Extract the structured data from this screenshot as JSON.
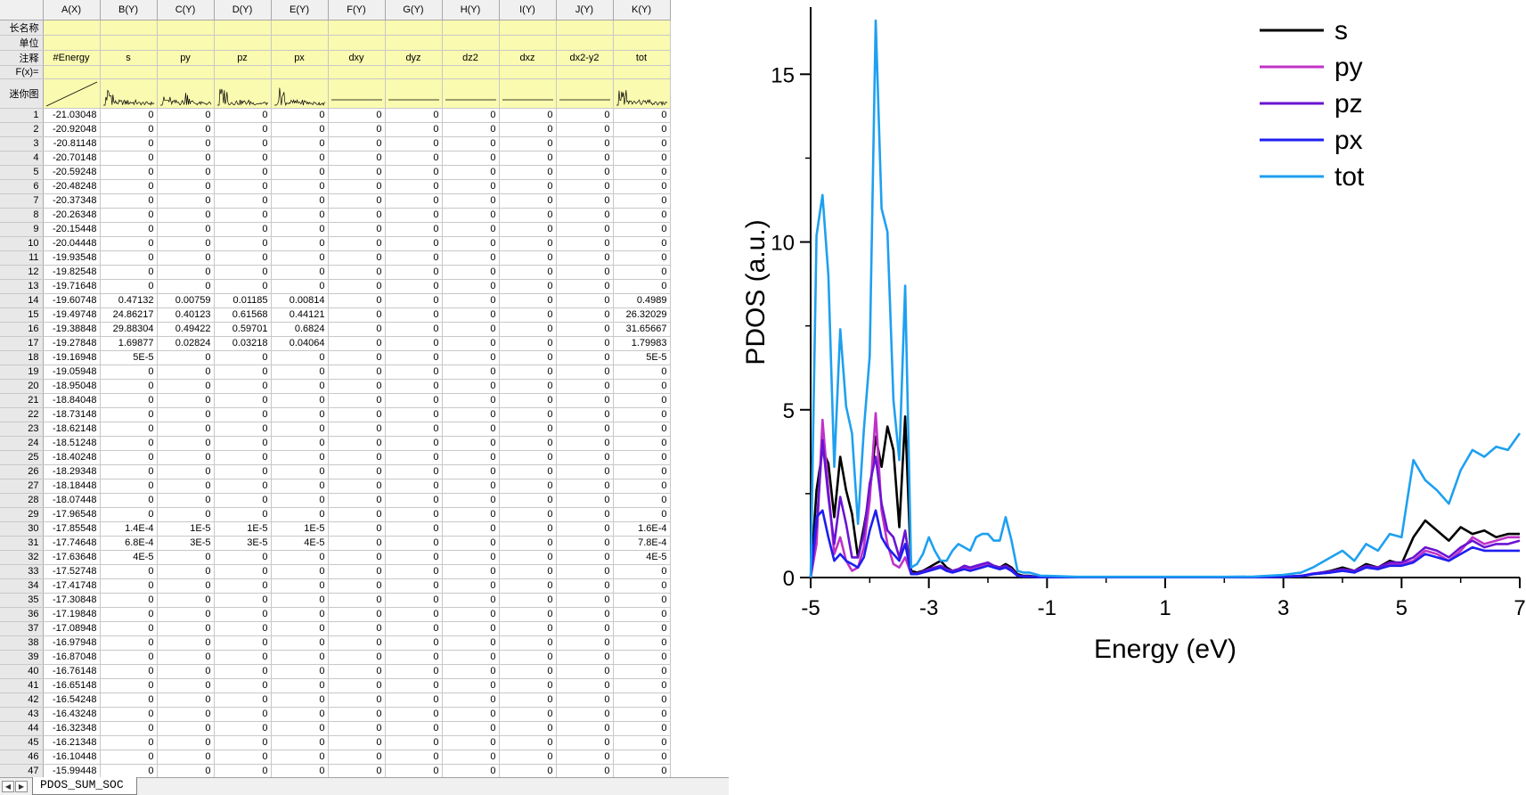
{
  "worksheet": {
    "columns": [
      {
        "id": "A(X)",
        "long_name": "",
        "unit": "",
        "comment": "#Energy"
      },
      {
        "id": "B(Y)",
        "long_name": "",
        "unit": "",
        "comment": "s"
      },
      {
        "id": "C(Y)",
        "long_name": "",
        "unit": "",
        "comment": "py"
      },
      {
        "id": "D(Y)",
        "long_name": "",
        "unit": "",
        "comment": "pz"
      },
      {
        "id": "E(Y)",
        "long_name": "",
        "unit": "",
        "comment": "px"
      },
      {
        "id": "F(Y)",
        "long_name": "",
        "unit": "",
        "comment": "dxy"
      },
      {
        "id": "G(Y)",
        "long_name": "",
        "unit": "",
        "comment": "dyz"
      },
      {
        "id": "H(Y)",
        "long_name": "",
        "unit": "",
        "comment": "dz2"
      },
      {
        "id": "I(Y)",
        "long_name": "",
        "unit": "",
        "comment": "dxz"
      },
      {
        "id": "J(Y)",
        "long_name": "",
        "unit": "",
        "comment": "dx2-y2"
      },
      {
        "id": "K(Y)",
        "long_name": "",
        "unit": "",
        "comment": "tot"
      }
    ],
    "row_labels": {
      "long_name": "长名称",
      "unit": "单位",
      "comment": "注释",
      "formula": "F(x)=",
      "sparkline": "迷你图"
    },
    "rows": [
      [
        "-21.03048",
        "0",
        "0",
        "0",
        "0",
        "0",
        "0",
        "0",
        "0",
        "0",
        "0"
      ],
      [
        "-20.92048",
        "0",
        "0",
        "0",
        "0",
        "0",
        "0",
        "0",
        "0",
        "0",
        "0"
      ],
      [
        "-20.81148",
        "0",
        "0",
        "0",
        "0",
        "0",
        "0",
        "0",
        "0",
        "0",
        "0"
      ],
      [
        "-20.70148",
        "0",
        "0",
        "0",
        "0",
        "0",
        "0",
        "0",
        "0",
        "0",
        "0"
      ],
      [
        "-20.59248",
        "0",
        "0",
        "0",
        "0",
        "0",
        "0",
        "0",
        "0",
        "0",
        "0"
      ],
      [
        "-20.48248",
        "0",
        "0",
        "0",
        "0",
        "0",
        "0",
        "0",
        "0",
        "0",
        "0"
      ],
      [
        "-20.37348",
        "0",
        "0",
        "0",
        "0",
        "0",
        "0",
        "0",
        "0",
        "0",
        "0"
      ],
      [
        "-20.26348",
        "0",
        "0",
        "0",
        "0",
        "0",
        "0",
        "0",
        "0",
        "0",
        "0"
      ],
      [
        "-20.15448",
        "0",
        "0",
        "0",
        "0",
        "0",
        "0",
        "0",
        "0",
        "0",
        "0"
      ],
      [
        "-20.04448",
        "0",
        "0",
        "0",
        "0",
        "0",
        "0",
        "0",
        "0",
        "0",
        "0"
      ],
      [
        "-19.93548",
        "0",
        "0",
        "0",
        "0",
        "0",
        "0",
        "0",
        "0",
        "0",
        "0"
      ],
      [
        "-19.82548",
        "0",
        "0",
        "0",
        "0",
        "0",
        "0",
        "0",
        "0",
        "0",
        "0"
      ],
      [
        "-19.71648",
        "0",
        "0",
        "0",
        "0",
        "0",
        "0",
        "0",
        "0",
        "0",
        "0"
      ],
      [
        "-19.60748",
        "0.47132",
        "0.00759",
        "0.01185",
        "0.00814",
        "0",
        "0",
        "0",
        "0",
        "0",
        "0.4989"
      ],
      [
        "-19.49748",
        "24.86217",
        "0.40123",
        "0.61568",
        "0.44121",
        "0",
        "0",
        "0",
        "0",
        "0",
        "26.32029"
      ],
      [
        "-19.38848",
        "29.88304",
        "0.49422",
        "0.59701",
        "0.6824",
        "0",
        "0",
        "0",
        "0",
        "0",
        "31.65667"
      ],
      [
        "-19.27848",
        "1.69877",
        "0.02824",
        "0.03218",
        "0.04064",
        "0",
        "0",
        "0",
        "0",
        "0",
        "1.79983"
      ],
      [
        "-19.16948",
        "5E-5",
        "0",
        "0",
        "0",
        "0",
        "0",
        "0",
        "0",
        "0",
        "5E-5"
      ],
      [
        "-19.05948",
        "0",
        "0",
        "0",
        "0",
        "0",
        "0",
        "0",
        "0",
        "0",
        "0"
      ],
      [
        "-18.95048",
        "0",
        "0",
        "0",
        "0",
        "0",
        "0",
        "0",
        "0",
        "0",
        "0"
      ],
      [
        "-18.84048",
        "0",
        "0",
        "0",
        "0",
        "0",
        "0",
        "0",
        "0",
        "0",
        "0"
      ],
      [
        "-18.73148",
        "0",
        "0",
        "0",
        "0",
        "0",
        "0",
        "0",
        "0",
        "0",
        "0"
      ],
      [
        "-18.62148",
        "0",
        "0",
        "0",
        "0",
        "0",
        "0",
        "0",
        "0",
        "0",
        "0"
      ],
      [
        "-18.51248",
        "0",
        "0",
        "0",
        "0",
        "0",
        "0",
        "0",
        "0",
        "0",
        "0"
      ],
      [
        "-18.40248",
        "0",
        "0",
        "0",
        "0",
        "0",
        "0",
        "0",
        "0",
        "0",
        "0"
      ],
      [
        "-18.29348",
        "0",
        "0",
        "0",
        "0",
        "0",
        "0",
        "0",
        "0",
        "0",
        "0"
      ],
      [
        "-18.18448",
        "0",
        "0",
        "0",
        "0",
        "0",
        "0",
        "0",
        "0",
        "0",
        "0"
      ],
      [
        "-18.07448",
        "0",
        "0",
        "0",
        "0",
        "0",
        "0",
        "0",
        "0",
        "0",
        "0"
      ],
      [
        "-17.96548",
        "0",
        "0",
        "0",
        "0",
        "0",
        "0",
        "0",
        "0",
        "0",
        "0"
      ],
      [
        "-17.85548",
        "1.4E-4",
        "1E-5",
        "1E-5",
        "1E-5",
        "0",
        "0",
        "0",
        "0",
        "0",
        "1.6E-4"
      ],
      [
        "-17.74648",
        "6.8E-4",
        "3E-5",
        "3E-5",
        "4E-5",
        "0",
        "0",
        "0",
        "0",
        "0",
        "7.8E-4"
      ],
      [
        "-17.63648",
        "4E-5",
        "0",
        "0",
        "0",
        "0",
        "0",
        "0",
        "0",
        "0",
        "4E-5"
      ],
      [
        "-17.52748",
        "0",
        "0",
        "0",
        "0",
        "0",
        "0",
        "0",
        "0",
        "0",
        "0"
      ],
      [
        "-17.41748",
        "0",
        "0",
        "0",
        "0",
        "0",
        "0",
        "0",
        "0",
        "0",
        "0"
      ],
      [
        "-17.30848",
        "0",
        "0",
        "0",
        "0",
        "0",
        "0",
        "0",
        "0",
        "0",
        "0"
      ],
      [
        "-17.19848",
        "0",
        "0",
        "0",
        "0",
        "0",
        "0",
        "0",
        "0",
        "0",
        "0"
      ],
      [
        "-17.08948",
        "0",
        "0",
        "0",
        "0",
        "0",
        "0",
        "0",
        "0",
        "0",
        "0"
      ],
      [
        "-16.97948",
        "0",
        "0",
        "0",
        "0",
        "0",
        "0",
        "0",
        "0",
        "0",
        "0"
      ],
      [
        "-16.87048",
        "0",
        "0",
        "0",
        "0",
        "0",
        "0",
        "0",
        "0",
        "0",
        "0"
      ],
      [
        "-16.76148",
        "0",
        "0",
        "0",
        "0",
        "0",
        "0",
        "0",
        "0",
        "0",
        "0"
      ],
      [
        "-16.65148",
        "0",
        "0",
        "0",
        "0",
        "0",
        "0",
        "0",
        "0",
        "0",
        "0"
      ],
      [
        "-16.54248",
        "0",
        "0",
        "0",
        "0",
        "0",
        "0",
        "0",
        "0",
        "0",
        "0"
      ],
      [
        "-16.43248",
        "0",
        "0",
        "0",
        "0",
        "0",
        "0",
        "0",
        "0",
        "0",
        "0"
      ],
      [
        "-16.32348",
        "0",
        "0",
        "0",
        "0",
        "0",
        "0",
        "0",
        "0",
        "0",
        "0"
      ],
      [
        "-16.21348",
        "0",
        "0",
        "0",
        "0",
        "0",
        "0",
        "0",
        "0",
        "0",
        "0"
      ],
      [
        "-16.10448",
        "0",
        "0",
        "0",
        "0",
        "0",
        "0",
        "0",
        "0",
        "0",
        "0"
      ],
      [
        "-15.99448",
        "0",
        "0",
        "0",
        "0",
        "0",
        "0",
        "0",
        "0",
        "0",
        "0"
      ]
    ],
    "sheet_tab": "PDOS_SUM_SOC"
  },
  "chart_data": {
    "type": "line",
    "xlabel": "Energy (eV)",
    "ylabel": "PDOS (a.u.)",
    "xlim": [
      -5,
      7
    ],
    "ylim": [
      0,
      17
    ],
    "xticks": [
      -5,
      -3,
      -1,
      1,
      3,
      5,
      7
    ],
    "yticks": [
      0,
      5,
      10,
      15
    ],
    "legend_position": "top-right",
    "x": [
      -5.0,
      -4.9,
      -4.8,
      -4.7,
      -4.6,
      -4.5,
      -4.4,
      -4.3,
      -4.2,
      -4.1,
      -4.0,
      -3.9,
      -3.8,
      -3.7,
      -3.6,
      -3.5,
      -3.4,
      -3.3,
      -3.2,
      -3.1,
      -3.0,
      -2.9,
      -2.8,
      -2.7,
      -2.6,
      -2.5,
      -2.4,
      -2.3,
      -2.2,
      -2.1,
      -2.0,
      -1.9,
      -1.8,
      -1.7,
      -1.6,
      -1.5,
      -1.4,
      -1.3,
      -1.2,
      -1.1,
      -1.0,
      -0.5,
      0.0,
      0.5,
      1.0,
      1.5,
      2.0,
      2.5,
      3.0,
      3.3,
      3.5,
      3.8,
      4.0,
      4.2,
      4.4,
      4.6,
      4.8,
      5.0,
      5.2,
      5.4,
      5.6,
      5.8,
      6.0,
      6.2,
      6.4,
      6.6,
      6.8,
      7.0
    ],
    "series": [
      {
        "name": "s",
        "color": "#000000",
        "values": [
          0.0,
          2.6,
          3.8,
          3.4,
          1.8,
          3.6,
          2.6,
          1.9,
          0.6,
          1.5,
          2.5,
          4.2,
          3.3,
          4.5,
          3.8,
          1.5,
          4.8,
          0.2,
          0.15,
          0.2,
          0.3,
          0.4,
          0.5,
          0.3,
          0.2,
          0.25,
          0.3,
          0.25,
          0.3,
          0.35,
          0.4,
          0.35,
          0.3,
          0.4,
          0.3,
          0.1,
          0.05,
          0.05,
          0.03,
          0.02,
          0.02,
          0.01,
          0.01,
          0.01,
          0.01,
          0.01,
          0.01,
          0.01,
          0.02,
          0.05,
          0.1,
          0.2,
          0.3,
          0.2,
          0.4,
          0.3,
          0.5,
          0.4,
          1.2,
          1.7,
          1.4,
          1.1,
          1.5,
          1.3,
          1.4,
          1.2,
          1.3,
          1.3
        ]
      },
      {
        "name": "py",
        "color": "#c032c8",
        "values": [
          0.0,
          1.0,
          4.7,
          2.6,
          0.7,
          1.2,
          0.5,
          0.2,
          0.3,
          0.9,
          2.3,
          4.9,
          2.0,
          1.0,
          0.4,
          0.3,
          0.6,
          0.1,
          0.1,
          0.15,
          0.2,
          0.25,
          0.3,
          0.2,
          0.15,
          0.2,
          0.3,
          0.25,
          0.3,
          0.35,
          0.4,
          0.3,
          0.25,
          0.3,
          0.2,
          0.05,
          0.03,
          0.03,
          0.02,
          0.01,
          0.01,
          0.01,
          0.01,
          0.01,
          0.01,
          0.01,
          0.01,
          0.01,
          0.02,
          0.04,
          0.1,
          0.15,
          0.2,
          0.15,
          0.3,
          0.25,
          0.4,
          0.4,
          0.5,
          0.8,
          0.7,
          0.5,
          0.8,
          1.2,
          1.0,
          1.1,
          1.2,
          1.2
        ]
      },
      {
        "name": "pz",
        "color": "#6a14d2",
        "values": [
          0.0,
          1.5,
          4.1,
          2.4,
          1.0,
          2.4,
          1.6,
          0.6,
          0.6,
          1.3,
          2.8,
          3.6,
          2.2,
          1.4,
          1.2,
          0.6,
          1.4,
          0.12,
          0.12,
          0.18,
          0.25,
          0.3,
          0.35,
          0.25,
          0.2,
          0.25,
          0.35,
          0.3,
          0.35,
          0.4,
          0.45,
          0.35,
          0.3,
          0.35,
          0.25,
          0.06,
          0.04,
          0.04,
          0.02,
          0.01,
          0.01,
          0.01,
          0.01,
          0.01,
          0.01,
          0.01,
          0.01,
          0.01,
          0.02,
          0.05,
          0.12,
          0.18,
          0.25,
          0.2,
          0.35,
          0.3,
          0.45,
          0.45,
          0.6,
          0.9,
          0.8,
          0.6,
          0.9,
          1.1,
          0.9,
          1.0,
          1.0,
          1.1
        ]
      },
      {
        "name": "px",
        "color": "#1e1ef0",
        "values": [
          0.0,
          1.8,
          2.0,
          1.2,
          0.5,
          0.7,
          0.5,
          0.4,
          0.3,
          0.6,
          1.4,
          2.0,
          1.2,
          0.9,
          0.7,
          0.5,
          1.0,
          0.1,
          0.1,
          0.15,
          0.2,
          0.25,
          0.3,
          0.2,
          0.15,
          0.2,
          0.25,
          0.2,
          0.25,
          0.3,
          0.35,
          0.3,
          0.25,
          0.3,
          0.2,
          0.05,
          0.03,
          0.03,
          0.02,
          0.01,
          0.01,
          0.01,
          0.01,
          0.01,
          0.01,
          0.01,
          0.01,
          0.01,
          0.02,
          0.04,
          0.1,
          0.15,
          0.2,
          0.15,
          0.3,
          0.25,
          0.35,
          0.35,
          0.45,
          0.7,
          0.6,
          0.5,
          0.7,
          0.9,
          0.8,
          0.8,
          0.8,
          0.8
        ]
      },
      {
        "name": "tot",
        "color": "#1ea0f0",
        "values": [
          0.0,
          10.2,
          11.4,
          9.0,
          3.3,
          7.4,
          5.1,
          4.3,
          1.6,
          4.4,
          6.6,
          16.6,
          11.0,
          10.3,
          5.3,
          3.5,
          8.7,
          0.3,
          0.4,
          0.7,
          1.2,
          0.8,
          0.5,
          0.5,
          0.8,
          1.0,
          0.9,
          0.8,
          1.2,
          1.3,
          1.3,
          1.1,
          1.1,
          1.8,
          1.1,
          0.2,
          0.15,
          0.15,
          0.1,
          0.05,
          0.05,
          0.02,
          0.02,
          0.02,
          0.02,
          0.02,
          0.02,
          0.03,
          0.08,
          0.15,
          0.3,
          0.6,
          0.8,
          0.5,
          1.0,
          0.8,
          1.3,
          1.2,
          3.5,
          2.9,
          2.6,
          2.2,
          3.2,
          3.8,
          3.6,
          3.9,
          3.8,
          4.3
        ]
      }
    ]
  }
}
